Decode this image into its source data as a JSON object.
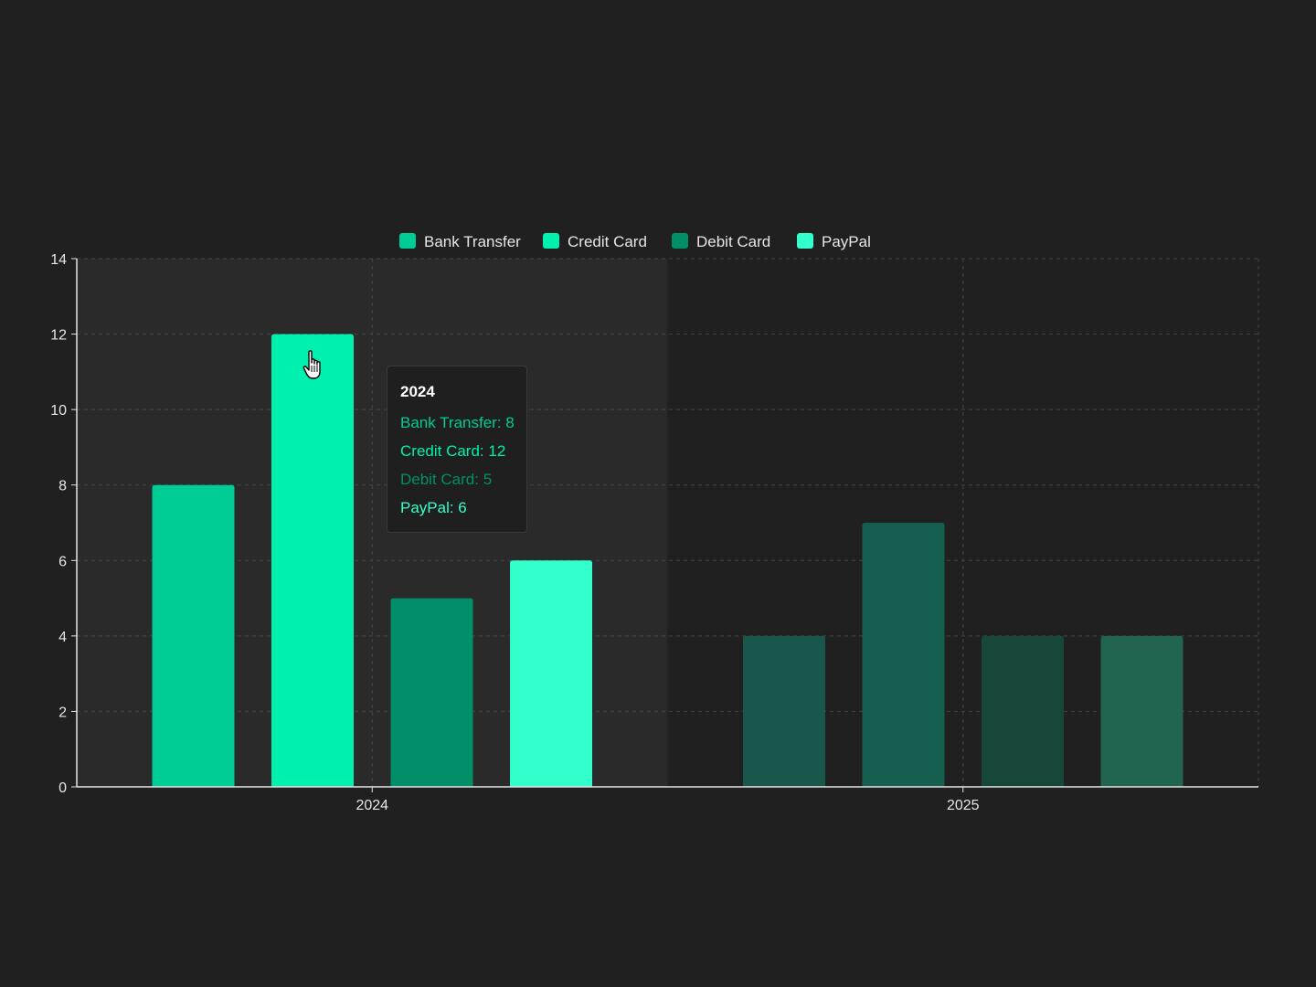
{
  "chart_data": {
    "type": "bar",
    "categories": [
      "2024",
      "2025"
    ],
    "series": [
      {
        "name": "Bank Transfer",
        "values": [
          8,
          4
        ],
        "color": "#00cc96"
      },
      {
        "name": "Credit Card",
        "values": [
          12,
          7
        ],
        "color": "#00f0b0"
      },
      {
        "name": "Debit Card",
        "values": [
          5,
          4
        ],
        "color": "#008f68"
      },
      {
        "name": "PayPal",
        "values": [
          6,
          4
        ],
        "color": "#33ffcc"
      }
    ],
    "dimmed_colors": [
      "#18574a",
      "#165f4f",
      "#17463a",
      "#226452"
    ],
    "title": "",
    "xlabel": "",
    "ylabel": "",
    "ylim": [
      0,
      14
    ],
    "yticks": [
      "0",
      "2",
      "4",
      "6",
      "8",
      "10",
      "12",
      "14"
    ],
    "grid": true,
    "legend_position": "top-center",
    "highlighted_category": "2024"
  },
  "tooltip": {
    "title": "2024",
    "rows": [
      {
        "text": "Bank Transfer: 8",
        "color": "#00cc96"
      },
      {
        "text": "Credit Card: 12",
        "color": "#00f0b0"
      },
      {
        "text": "Debit Card: 5",
        "color": "#008f68"
      },
      {
        "text": "PayPal: 6",
        "color": "#33ffcc"
      }
    ]
  },
  "colors": {
    "background": "#202020",
    "highlight_band": "#2a2a2a",
    "grid": "#444444",
    "axis": "#e6e6e6"
  },
  "cursor_icon": "hand-pointer-icon"
}
